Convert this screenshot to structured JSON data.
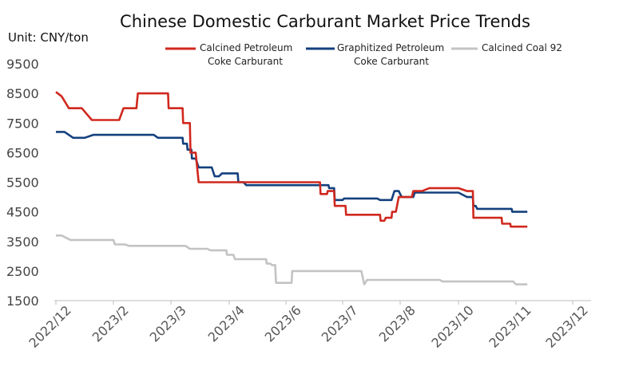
{
  "chart_data": {
    "type": "line",
    "title": "Chinese Domestic Carburant Market Price Trends",
    "unit_label": "Unit: CNY/ton",
    "ylim": [
      1500,
      9500
    ],
    "yticks": [
      "9500",
      "8500",
      "7500",
      "6500",
      "5500",
      "4500",
      "3500",
      "2500",
      "1500"
    ],
    "xticks": [
      "2022/12",
      "2023/2",
      "2023/3",
      "2023/4",
      "2023/6",
      "2023/7",
      "2023/8",
      "2023/10",
      "2023/11",
      "2023/12"
    ],
    "grid": false,
    "legend_position": "top",
    "series": [
      {
        "name": "Calcined Petroleum Coke Carburant",
        "legend_lines": [
          "Calcined Petroleum",
          "Coke Carburant"
        ],
        "color": "#d0281e",
        "points": [
          [
            0,
            8550
          ],
          [
            0.2,
            8400
          ],
          [
            0.45,
            8000
          ],
          [
            0.9,
            8000
          ],
          [
            1.25,
            7600
          ],
          [
            2.2,
            7600
          ],
          [
            2.35,
            8000
          ],
          [
            2.8,
            8000
          ],
          [
            2.85,
            8500
          ],
          [
            3.9,
            8500
          ],
          [
            3.92,
            8000
          ],
          [
            4.4,
            8000
          ],
          [
            4.42,
            7500
          ],
          [
            4.65,
            7500
          ],
          [
            4.67,
            6500
          ],
          [
            4.85,
            6500
          ],
          [
            4.95,
            5500
          ],
          [
            9.2,
            5500
          ],
          [
            9.22,
            5100
          ],
          [
            9.45,
            5100
          ],
          [
            9.47,
            5200
          ],
          [
            9.7,
            5200
          ],
          [
            9.72,
            4700
          ],
          [
            10.1,
            4700
          ],
          [
            10.12,
            4400
          ],
          [
            11.3,
            4400
          ],
          [
            11.32,
            4200
          ],
          [
            11.45,
            4200
          ],
          [
            11.5,
            4300
          ],
          [
            11.7,
            4300
          ],
          [
            11.72,
            4500
          ],
          [
            11.85,
            4500
          ],
          [
            11.95,
            5000
          ],
          [
            12.4,
            5000
          ],
          [
            12.45,
            5200
          ],
          [
            12.75,
            5200
          ],
          [
            13.0,
            5300
          ],
          [
            14.0,
            5300
          ],
          [
            14.3,
            5200
          ],
          [
            14.5,
            5200
          ],
          [
            14.52,
            4300
          ],
          [
            15.5,
            4300
          ],
          [
            15.52,
            4100
          ],
          [
            15.8,
            4100
          ],
          [
            15.82,
            4000
          ],
          [
            16.4,
            4000
          ]
        ]
      },
      {
        "name": "Graphitized Petroleum Coke Carburant",
        "legend_lines": [
          "Graphitized Petroleum",
          "Coke Carburant"
        ],
        "color": "#13407e",
        "points": [
          [
            0,
            7200
          ],
          [
            0.3,
            7200
          ],
          [
            0.6,
            7000
          ],
          [
            1.0,
            7000
          ],
          [
            1.3,
            7100
          ],
          [
            3.4,
            7100
          ],
          [
            3.55,
            7000
          ],
          [
            4.4,
            7000
          ],
          [
            4.42,
            6800
          ],
          [
            4.55,
            6800
          ],
          [
            4.57,
            6600
          ],
          [
            4.7,
            6600
          ],
          [
            4.72,
            6300
          ],
          [
            4.85,
            6300
          ],
          [
            4.95,
            6000
          ],
          [
            5.4,
            6000
          ],
          [
            5.5,
            5700
          ],
          [
            5.65,
            5700
          ],
          [
            5.75,
            5800
          ],
          [
            6.3,
            5800
          ],
          [
            6.32,
            5500
          ],
          [
            6.5,
            5500
          ],
          [
            6.6,
            5400
          ],
          [
            9.5,
            5400
          ],
          [
            9.52,
            5300
          ],
          [
            9.7,
            5300
          ],
          [
            9.72,
            4900
          ],
          [
            10.0,
            4900
          ],
          [
            10.05,
            4950
          ],
          [
            11.2,
            4950
          ],
          [
            11.3,
            4900
          ],
          [
            11.7,
            4900
          ],
          [
            11.8,
            5200
          ],
          [
            11.95,
            5200
          ],
          [
            12.05,
            5000
          ],
          [
            12.45,
            5000
          ],
          [
            12.5,
            5150
          ],
          [
            14.0,
            5150
          ],
          [
            14.3,
            5000
          ],
          [
            14.5,
            5000
          ],
          [
            14.52,
            4700
          ],
          [
            14.6,
            4700
          ],
          [
            14.65,
            4600
          ],
          [
            15.85,
            4600
          ],
          [
            15.87,
            4500
          ],
          [
            16.4,
            4500
          ]
        ]
      },
      {
        "name": "Calcined Coal 92",
        "legend_lines": [
          "Calcined Coal 92"
        ],
        "color": "#c3c3c3",
        "points": [
          [
            0,
            3700
          ],
          [
            0.2,
            3700
          ],
          [
            0.5,
            3550
          ],
          [
            2.0,
            3550
          ],
          [
            2.05,
            3400
          ],
          [
            2.4,
            3400
          ],
          [
            2.55,
            3350
          ],
          [
            4.5,
            3350
          ],
          [
            4.65,
            3250
          ],
          [
            5.25,
            3250
          ],
          [
            5.35,
            3200
          ],
          [
            5.9,
            3200
          ],
          [
            5.92,
            3050
          ],
          [
            6.15,
            3050
          ],
          [
            6.2,
            2900
          ],
          [
            7.3,
            2900
          ],
          [
            7.32,
            2750
          ],
          [
            7.45,
            2750
          ],
          [
            7.5,
            2700
          ],
          [
            7.62,
            2700
          ],
          [
            7.65,
            2100
          ],
          [
            8.2,
            2100
          ],
          [
            8.22,
            2500
          ],
          [
            10.65,
            2500
          ],
          [
            10.75,
            2050
          ],
          [
            10.85,
            2200
          ],
          [
            13.35,
            2200
          ],
          [
            13.45,
            2150
          ],
          [
            15.9,
            2150
          ],
          [
            16.0,
            2050
          ],
          [
            16.4,
            2050
          ]
        ]
      }
    ]
  }
}
